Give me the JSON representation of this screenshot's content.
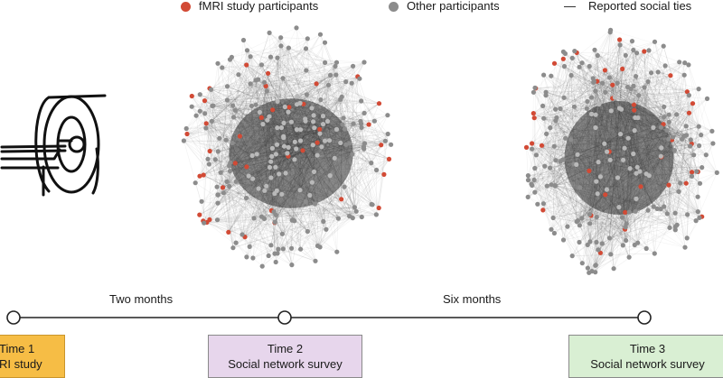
{
  "legend": {
    "fmri_label": "fMRI study participants",
    "other_label": "Other participants",
    "ties_label": "Reported social ties"
  },
  "colors": {
    "fmri_node": "#d24a35",
    "other_node": "#8c8c8c",
    "tie": "#444444",
    "time1_box": "#f6bd45",
    "time2_box": "#e7d6ec",
    "time3_box": "#d9efd3"
  },
  "timeline": {
    "interval_1": "Two months",
    "interval_2": "Six months",
    "time1": {
      "title": "Time 1",
      "subtitle": "RI study"
    },
    "time2": {
      "title": "Time 2",
      "subtitle": "Social network survey"
    },
    "time3": {
      "title": "Time 3",
      "subtitle": "Social network survey"
    }
  },
  "icons": {
    "scanner": "mri-scanner-icon"
  }
}
